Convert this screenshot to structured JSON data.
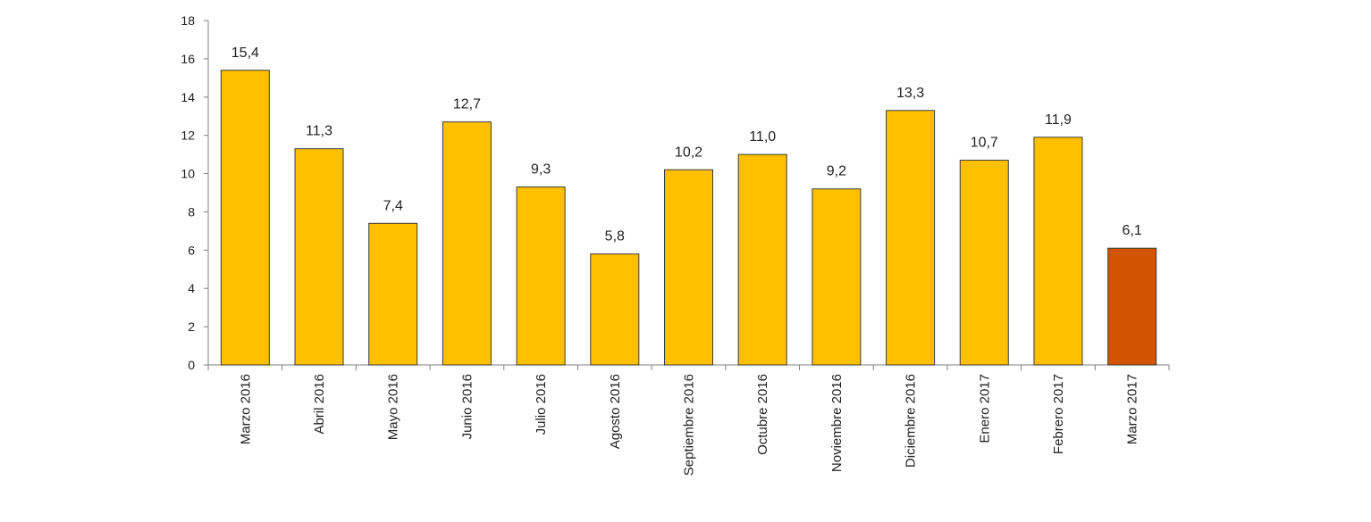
{
  "chart_data": {
    "type": "bar",
    "title": "",
    "xlabel": "",
    "ylabel": "",
    "ylim": [
      0,
      18
    ],
    "yticks": [
      0,
      2,
      4,
      6,
      8,
      10,
      12,
      14,
      16,
      18
    ],
    "ytick_labels": [
      "0",
      "2",
      "4",
      "6",
      "8",
      "10",
      "12",
      "14",
      "16",
      "18"
    ],
    "grid": false,
    "legend": "none",
    "categories": [
      "Marzo 2016",
      "Abril 2016",
      "Mayo 2016",
      "Junio 2016",
      "Julio 2016",
      "Agosto 2016",
      "Septiembre 2016",
      "Octubre 2016",
      "Noviembre 2016",
      "Diciembre 2016",
      "Enero 2017",
      "Febrero 2017",
      "Marzo 2017"
    ],
    "values": [
      15.4,
      11.3,
      7.4,
      12.7,
      9.3,
      5.8,
      10.2,
      11.0,
      9.2,
      13.3,
      10.7,
      11.9,
      6.1
    ],
    "data_labels": [
      "15,4",
      "11,3",
      "7,4",
      "12,7",
      "9,3",
      "5,8",
      "10,2",
      "11,0",
      "9,2",
      "13,3",
      "10,7",
      "11,9",
      "6,1"
    ],
    "colors": {
      "default_bar": "#FFC000",
      "highlight_bar": "#D35400",
      "bar_stroke": "#3a3a3a",
      "axis": "#808080",
      "text": "#222222"
    },
    "highlight_index": 12
  }
}
